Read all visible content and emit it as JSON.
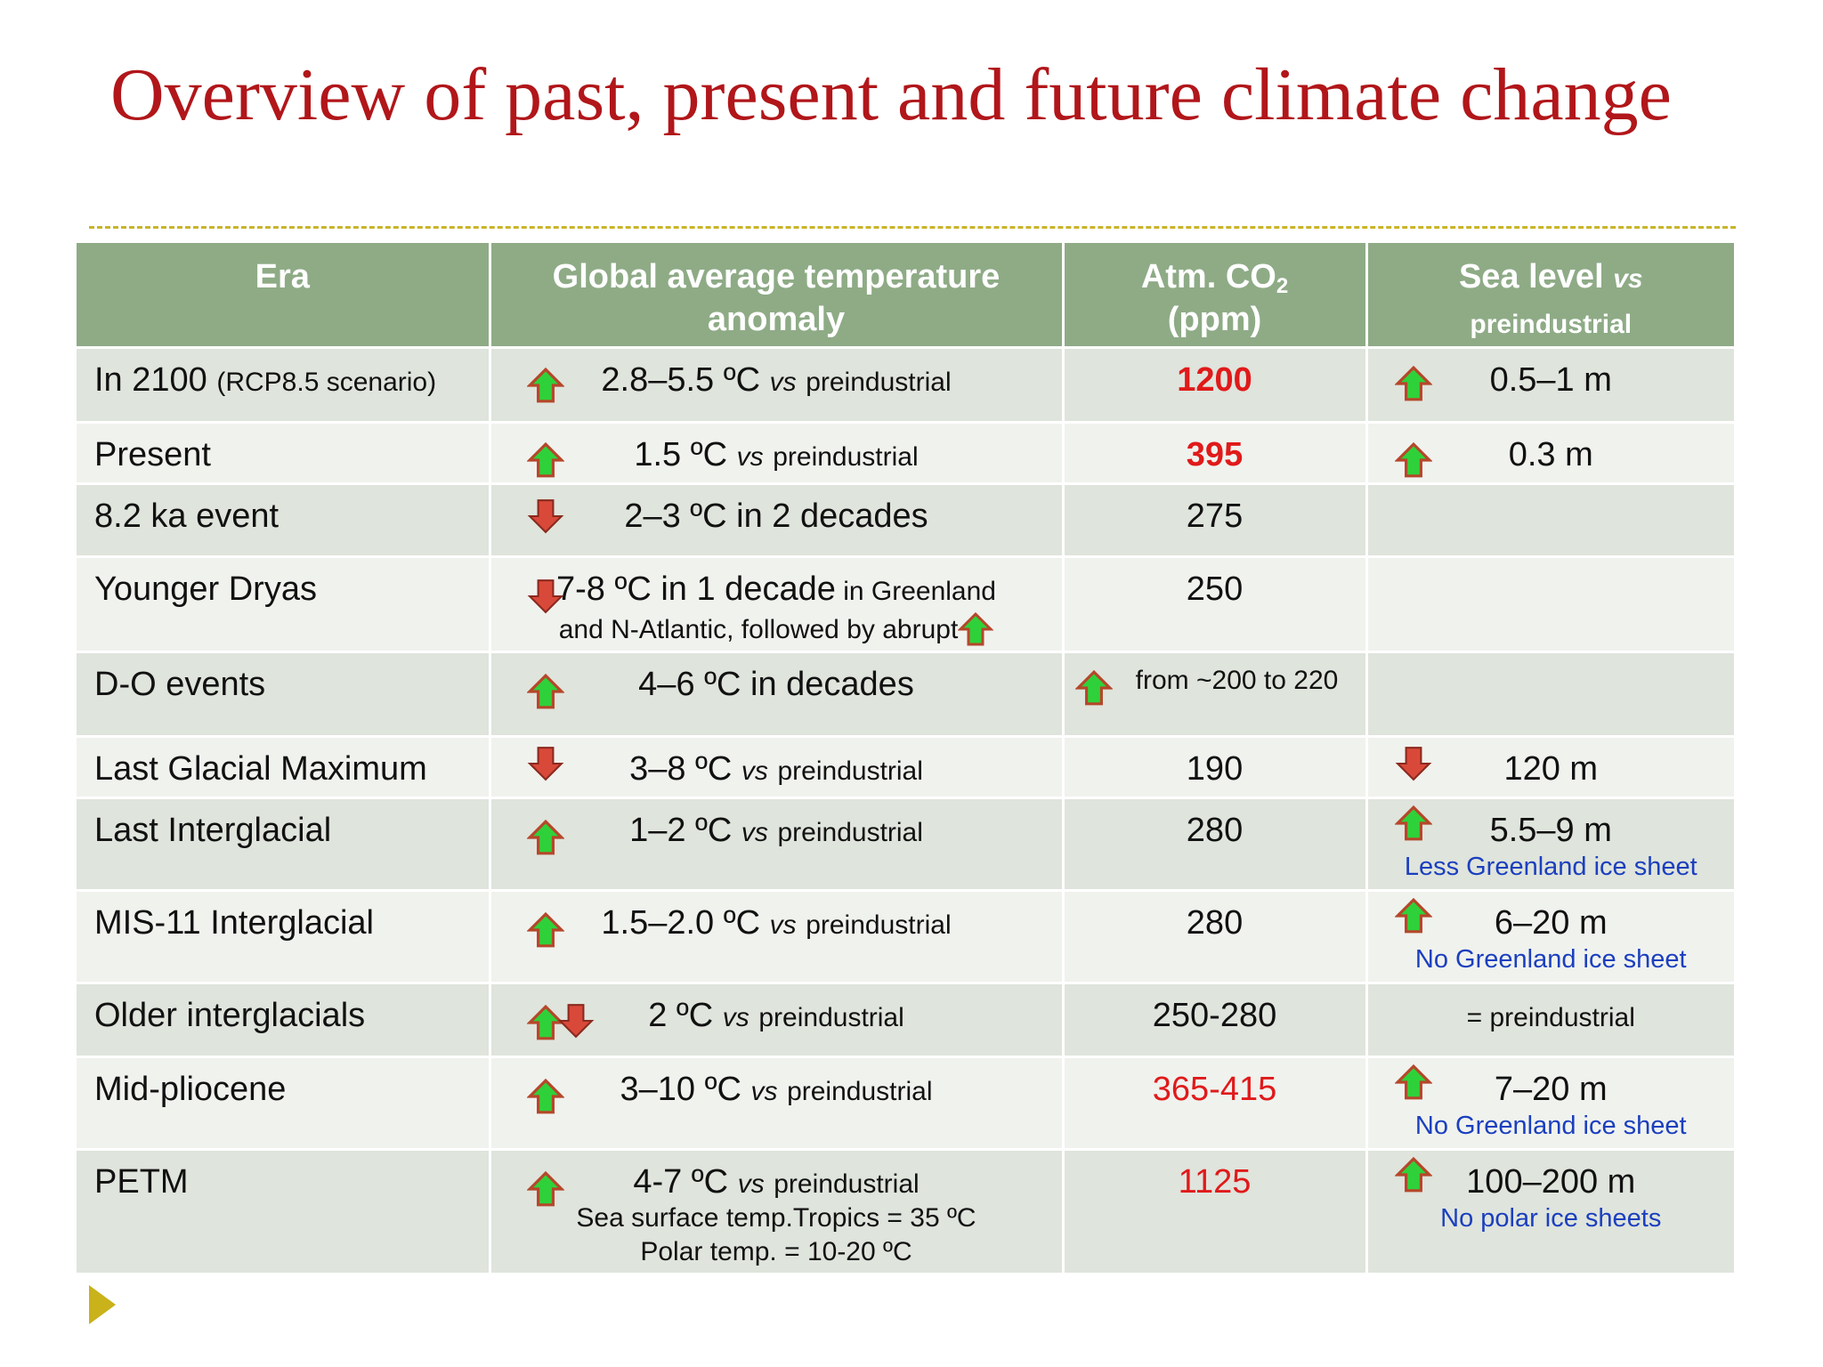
{
  "slide": {
    "title": "Overview of past, present and future climate change"
  },
  "colors": {
    "title": "#b1161a",
    "header_bg": "#8eab86",
    "row_dark": "#dfe4dc",
    "row_light": "#f0f2ee",
    "highlight_red": "#e01a1a",
    "note_blue": "#1b3fbe",
    "divider_and_bullet": "#c9b21a",
    "arrow_up": "#2fd13a",
    "arrow_down": "#d9493a"
  },
  "table": {
    "headers": {
      "era": "Era",
      "temp": "Global average temperature anomaly",
      "co2_main": "Atm. CO",
      "co2_sub": "2",
      "co2_unit": "(ppm)",
      "sea_main": "Sea level ",
      "sea_vs": "vs",
      "sea_rest": "preindustrial"
    },
    "vs_word": "vs",
    "preindustrial_word": "preindustrial",
    "rows": [
      {
        "era": "In  2100 ",
        "era_note": "(RCP8.5 scenario)",
        "temp_arrow": "up-arrow-icon",
        "temp_value": "2.8–5.5 ºC",
        "co2": "1200",
        "sea_arrow": "up-arrow-icon",
        "sea": "0.5–1 m"
      },
      {
        "era": "Present",
        "temp_arrow": "up-arrow-icon",
        "temp_value": "1.5 ºC",
        "co2": "395",
        "sea_arrow": "up-arrow-icon",
        "sea": "0.3 m"
      },
      {
        "era": "8.2 ka event",
        "temp_arrow": "down-arrow-icon",
        "temp_value": "2–3 ºC in 2 decades",
        "co2": "275"
      },
      {
        "era": "Younger Dryas",
        "temp_arrow": "down-arrow-icon",
        "temp_value": "7-8 ºC in 1 decade",
        "temp_note1": " in Greenland",
        "temp_note2": "and N-Atlantic, followed by abrupt",
        "co2": "250"
      },
      {
        "era": "D-O events",
        "temp_arrow": "up-arrow-icon",
        "temp_value": "4–6 ºC in decades",
        "co2_arrow": "up-arrow-icon",
        "co2": "from ~200 to 220"
      },
      {
        "era": "Last Glacial Maximum",
        "temp_arrow": "down-arrow-icon",
        "temp_value": "3–8 ºC",
        "co2": "190",
        "sea_arrow": "down-arrow-icon",
        "sea": "120 m"
      },
      {
        "era": "Last Interglacial",
        "temp_arrow": "up-arrow-icon",
        "temp_value": "1–2 ºC",
        "co2": "280",
        "sea_arrow": "up-arrow-icon",
        "sea": "5.5–9 m",
        "sea_note": "Less Greenland ice sheet"
      },
      {
        "era": "MIS-11 Interglacial",
        "temp_arrow": "up-arrow-icon",
        "temp_value": "1.5–2.0 ºC",
        "co2": "280",
        "sea_arrow": "up-arrow-icon",
        "sea": "6–20 m",
        "sea_note": "No Greenland ice sheet"
      },
      {
        "era": "Older interglacials",
        "temp_arrow": "up-down-arrows-icon",
        "temp_value": "2  ºC",
        "co2": "250-280",
        "sea_plain": "= preindustrial"
      },
      {
        "era": "Mid-pliocene",
        "temp_arrow": "up-arrow-icon",
        "temp_value": "3–10 ºC",
        "co2": "365-415",
        "sea_arrow": "up-arrow-icon",
        "sea": "7–20 m",
        "sea_note": "No Greenland ice sheet"
      },
      {
        "era": "PETM",
        "temp_arrow": "up-arrow-icon",
        "temp_value": "4-7 ºC",
        "temp_line2": "Sea surface temp.Tropics = 35 ºC",
        "temp_line3": "Polar temp. =  10-20 ºC",
        "co2": "1125",
        "sea_arrow": "up-arrow-icon",
        "sea": "100–200 m",
        "sea_note": "No polar ice sheets"
      }
    ]
  }
}
